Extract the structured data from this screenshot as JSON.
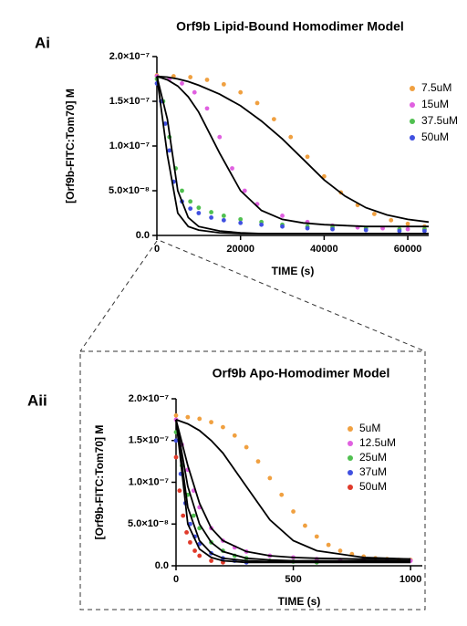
{
  "chart_data": [
    {
      "type": "scatter",
      "panel": "Ai",
      "title": "Orf9b Lipid-Bound Homodimer Model",
      "x_label": "TIME (s)",
      "y_label": "[Orf9b-FITC:Tom70] M",
      "xlim": [
        0,
        65000
      ],
      "ylim": [
        0,
        2e-07
      ],
      "xticks": [
        0,
        20000,
        40000,
        60000
      ],
      "yticks": [
        {
          "value": 0,
          "label": "0.0"
        },
        {
          "value": 5e-08,
          "label": "5.0×10⁻⁸"
        },
        {
          "value": 1e-07,
          "label": "1.0×10⁻⁷"
        },
        {
          "value": 1.5e-07,
          "label": "1.5×10⁻⁷"
        },
        {
          "value": 2e-07,
          "label": "2.0×10⁻⁷"
        }
      ],
      "legend": "upper right",
      "series": [
        {
          "name": "7.5uM",
          "color": "#f0a040",
          "x": [
            0,
            4000,
            8000,
            12000,
            16000,
            20000,
            24000,
            28000,
            32000,
            36000,
            40000,
            44000,
            48000,
            52000,
            56000,
            60000,
            64000
          ],
          "values": [
            1.79e-07,
            1.78e-07,
            1.77e-07,
            1.74e-07,
            1.69e-07,
            1.6e-07,
            1.48e-07,
            1.3e-07,
            1.1e-07,
            8.8e-08,
            6.6e-08,
            4.8e-08,
            3.4e-08,
            2.4e-08,
            1.7e-08,
            1.3e-08,
            1e-08
          ]
        },
        {
          "name": "15uM",
          "color": "#e060e0",
          "x": [
            0,
            3000,
            6000,
            9000,
            12000,
            15000,
            18000,
            21000,
            24000,
            30000,
            36000,
            42000,
            48000,
            54000,
            60000,
            64000
          ],
          "values": [
            1.78e-07,
            1.75e-07,
            1.7e-07,
            1.6e-07,
            1.42e-07,
            1.1e-07,
            7.5e-08,
            5e-08,
            3.5e-08,
            2.2e-08,
            1.5e-08,
            1.1e-08,
            9e-09,
            8e-09,
            7e-09,
            7e-09
          ]
        },
        {
          "name": "37.5uM",
          "color": "#50c050",
          "x": [
            0,
            1500,
            3000,
            4500,
            6000,
            8000,
            10000,
            13000,
            16000,
            20000,
            25000,
            30000,
            36000,
            42000,
            50000,
            58000,
            64000
          ],
          "values": [
            1.75e-07,
            1.5e-07,
            1.1e-07,
            7.5e-08,
            5e-08,
            3.8e-08,
            3.1e-08,
            2.6e-08,
            2.2e-08,
            1.8e-08,
            1.5e-08,
            1.2e-08,
            1e-08,
            9e-09,
            8e-09,
            7e-09,
            7e-09
          ]
        },
        {
          "name": "50uM",
          "color": "#4050e0",
          "x": [
            0,
            1000,
            2000,
            3000,
            4000,
            6000,
            8000,
            10000,
            13000,
            16000,
            20000,
            25000,
            30000,
            36000,
            42000,
            50000,
            58000,
            64000
          ],
          "values": [
            1.7e-07,
            1.5e-07,
            1.25e-07,
            9.5e-08,
            6e-08,
            3.8e-08,
            3e-08,
            2.5e-08,
            2e-08,
            1.7e-08,
            1.4e-08,
            1.2e-08,
            1e-08,
            8e-09,
            7e-09,
            6e-09,
            5e-09,
            5e-09
          ]
        }
      ],
      "fits": [
        {
          "color": "#000000",
          "x": [
            0,
            2500,
            5000,
            7500,
            10000,
            15000,
            20000,
            25000,
            30000,
            35000,
            40000,
            45000,
            50000,
            55000,
            60000,
            65000
          ],
          "values": [
            1.78e-07,
            1.77e-07,
            1.75e-07,
            1.72e-07,
            1.68e-07,
            1.58e-07,
            1.45e-07,
            1.28e-07,
            1.08e-07,
            8.5e-08,
            6.2e-08,
            4.4e-08,
            3.1e-08,
            2.3e-08,
            1.8e-08,
            1.5e-08
          ]
        },
        {
          "color": "#000000",
          "x": [
            0,
            2500,
            5000,
            7500,
            10000,
            15000,
            20000,
            25000,
            30000,
            35000,
            40000,
            45000,
            50000,
            55000,
            60000,
            65000
          ],
          "values": [
            1.78e-07,
            1.74e-07,
            1.67e-07,
            1.55e-07,
            1.38e-07,
            9.2e-08,
            5e-08,
            2.8e-08,
            1.8e-08,
            1.4e-08,
            1.2e-08,
            1.1e-08,
            1e-08,
            1e-08,
            1e-08,
            1e-08
          ]
        },
        {
          "color": "#000000",
          "x": [
            0,
            2500,
            5000,
            7500,
            10000,
            15000,
            20000,
            25000,
            30000,
            35000,
            40000,
            45000,
            50000,
            55000,
            60000,
            65000
          ],
          "values": [
            1.78e-07,
            1.3e-07,
            5e-08,
            2e-08,
            1e-08,
            5e-09,
            3e-09,
            2e-09,
            2e-09,
            2e-09,
            2e-09,
            2e-09,
            2e-09,
            2e-09,
            2e-09,
            2e-09
          ]
        },
        {
          "color": "#000000",
          "x": [
            0,
            2500,
            5000,
            7500,
            10000,
            15000,
            20000,
            25000,
            30000,
            35000,
            40000,
            45000,
            50000,
            55000,
            60000,
            65000
          ],
          "values": [
            1.78e-07,
            9e-08,
            2.5e-08,
            1e-08,
            6e-09,
            3e-09,
            2e-09,
            2e-09,
            2e-09,
            2e-09,
            2e-09,
            2e-09,
            2e-09,
            2e-09,
            2e-09,
            2e-09
          ]
        }
      ]
    },
    {
      "type": "scatter",
      "panel": "Aii",
      "title": "Orf9b Apo-Homodimer Model",
      "x_label": "TIME (s)",
      "y_label": "[Orf9b-FITC:Tom70] M",
      "xlim": [
        0,
        1050
      ],
      "ylim": [
        0,
        2e-07
      ],
      "xticks": [
        0,
        500,
        1000
      ],
      "yticks": [
        {
          "value": 0,
          "label": "0.0"
        },
        {
          "value": 5e-08,
          "label": "5.0×10⁻⁸"
        },
        {
          "value": 1e-07,
          "label": "1.0×10⁻⁷"
        },
        {
          "value": 1.5e-07,
          "label": "1.5×10⁻⁷"
        },
        {
          "value": 2e-07,
          "label": "2.0×10⁻⁷"
        }
      ],
      "legend": "upper right",
      "series": [
        {
          "name": "5uM",
          "color": "#f0a040",
          "x": [
            0,
            50,
            100,
            150,
            200,
            250,
            300,
            350,
            400,
            450,
            500,
            550,
            600,
            650,
            700,
            750,
            800,
            850,
            900,
            950,
            1000
          ],
          "values": [
            1.8e-07,
            1.78e-07,
            1.76e-07,
            1.72e-07,
            1.66e-07,
            1.56e-07,
            1.42e-07,
            1.25e-07,
            1.05e-07,
            8.5e-08,
            6.5e-08,
            4.8e-08,
            3.5e-08,
            2.5e-08,
            1.8e-08,
            1.4e-08,
            1.1e-08,
            9e-09,
            8e-09,
            7e-09,
            7e-09
          ]
        },
        {
          "name": "12.5uM",
          "color": "#e060e0",
          "x": [
            0,
            25,
            50,
            75,
            100,
            150,
            200,
            250,
            300,
            400,
            500,
            600,
            700,
            800,
            900,
            1000
          ],
          "values": [
            1.75e-07,
            1.45e-07,
            1.15e-07,
            9e-08,
            7e-08,
            4.5e-08,
            3e-08,
            2.2e-08,
            1.7e-08,
            1.2e-08,
            1e-08,
            8e-09,
            7e-09,
            7e-09,
            6e-09,
            6e-09
          ]
        },
        {
          "name": "25uM",
          "color": "#50c050",
          "x": [
            0,
            25,
            50,
            75,
            100,
            150,
            200,
            250,
            300,
            400,
            500,
            600
          ],
          "values": [
            1.6e-07,
            1.2e-07,
            8.5e-08,
            6e-08,
            4.5e-08,
            2.8e-08,
            1.8e-08,
            1.2e-08,
            9e-09,
            6e-09,
            5e-09,
            4e-09
          ]
        },
        {
          "name": "37uM",
          "color": "#4050e0",
          "x": [
            0,
            20,
            40,
            60,
            80,
            100,
            150,
            200,
            250,
            300
          ],
          "values": [
            1.5e-07,
            1.1e-07,
            7.5e-08,
            5e-08,
            3.5e-08,
            2.6e-08,
            1.5e-08,
            9e-09,
            6e-09,
            4e-09
          ]
        },
        {
          "name": "50uM",
          "color": "#e03a2a",
          "x": [
            0,
            15,
            30,
            45,
            60,
            80,
            100,
            150,
            200
          ],
          "values": [
            1.3e-07,
            9e-08,
            6e-08,
            4e-08,
            2.8e-08,
            1.8e-08,
            1.2e-08,
            6e-09,
            4e-09
          ]
        }
      ],
      "fits": [
        {
          "color": "#000000",
          "x": [
            0,
            50,
            100,
            150,
            200,
            300,
            400,
            500,
            600,
            800,
            1000
          ],
          "values": [
            1.75e-07,
            1.7e-07,
            1.62e-07,
            1.5e-07,
            1.35e-07,
            9.5e-08,
            5.5e-08,
            3e-08,
            1.8e-08,
            1e-08,
            8e-09
          ]
        },
        {
          "color": "#000000",
          "x": [
            0,
            50,
            100,
            150,
            200,
            300,
            400,
            500,
            600,
            800,
            1000
          ],
          "values": [
            1.75e-07,
            1.2e-07,
            7.5e-08,
            4.5e-08,
            3e-08,
            1.7e-08,
            1.2e-08,
            1e-08,
            9e-09,
            8e-09,
            8e-09
          ]
        },
        {
          "color": "#000000",
          "x": [
            0,
            50,
            100,
            150,
            200,
            300,
            400,
            500,
            600,
            800,
            1000
          ],
          "values": [
            1.75e-07,
            9.5e-08,
            5e-08,
            2.8e-08,
            1.7e-08,
            9e-09,
            7e-09,
            6e-09,
            6e-09,
            6e-09,
            6e-09
          ]
        },
        {
          "color": "#000000",
          "x": [
            0,
            50,
            100,
            150,
            200,
            300,
            400,
            500,
            600,
            800,
            1000
          ],
          "values": [
            1.75e-07,
            7e-08,
            3e-08,
            1.5e-08,
            9e-09,
            6e-09,
            5e-09,
            5e-09,
            5e-09,
            5e-09,
            5e-09
          ]
        },
        {
          "color": "#000000",
          "x": [
            0,
            50,
            100,
            150,
            200,
            300,
            400,
            500,
            600,
            800,
            1000
          ],
          "values": [
            1.75e-07,
            5e-08,
            2e-08,
            1e-08,
            6e-09,
            4e-09,
            4e-09,
            4e-09,
            4e-09,
            4e-09,
            4e-09
          ]
        }
      ]
    }
  ]
}
